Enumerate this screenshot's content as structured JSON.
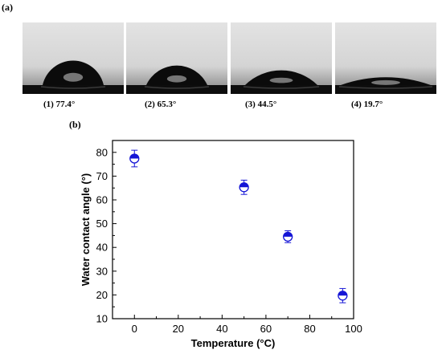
{
  "panel_labels": {
    "a": "(a)",
    "b": "(b)"
  },
  "photos": [
    {
      "caption": "(1)  77.4°",
      "angle": 77.4
    },
    {
      "caption": "(2)  65.3°",
      "angle": 65.3
    },
    {
      "caption": "(3)  44.5°",
      "angle": 44.5
    },
    {
      "caption": "(4)  19.7°",
      "angle": 19.7
    }
  ],
  "chart_data": {
    "type": "scatter",
    "title": "",
    "xlabel": "Temperature (°C)",
    "ylabel": "Water contact angle (°)",
    "xlim": [
      -10,
      100
    ],
    "ylim": [
      10,
      85
    ],
    "xticks": [
      0,
      20,
      40,
      60,
      80,
      100
    ],
    "yticks": [
      10,
      20,
      30,
      40,
      50,
      60,
      70,
      80
    ],
    "grid": false,
    "legend": "none",
    "marker_color": "#1515d6",
    "points": [
      {
        "x": 0,
        "y": 77.4,
        "err": 3.5
      },
      {
        "x": 50,
        "y": 65.3,
        "err": 3.0
      },
      {
        "x": 70,
        "y": 44.5,
        "err": 2.5
      },
      {
        "x": 95,
        "y": 19.7,
        "err": 3.0
      }
    ]
  }
}
